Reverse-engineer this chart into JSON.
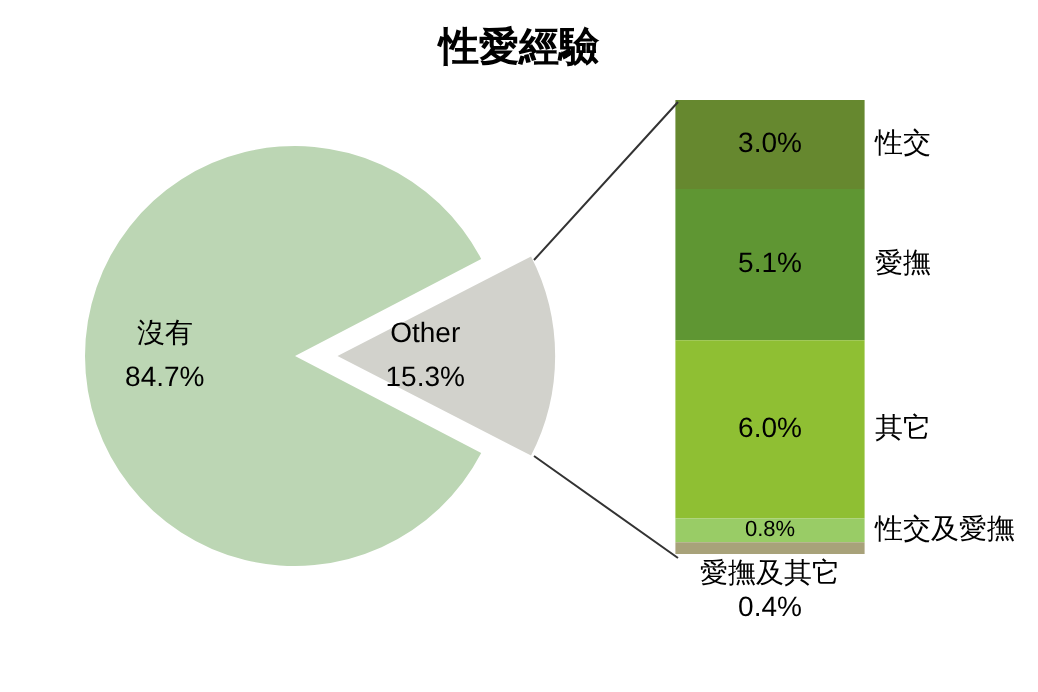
{
  "chart_data": [
    {
      "type": "pie",
      "title": "性愛經驗",
      "categories": [
        "沒有",
        "Other"
      ],
      "values": [
        84.7,
        15.3
      ],
      "colors": [
        "#bcd6b4",
        "#d2d2cc"
      ],
      "value_labels": [
        "84.7%",
        "15.3%"
      ]
    },
    {
      "type": "bar",
      "stacked": true,
      "categories": [
        null
      ],
      "series": [
        {
          "name": "愛撫及其它",
          "color": "#a8a27a",
          "values": [
            0.4
          ],
          "value_labels": [
            "0.4%"
          ]
        },
        {
          "name": "性交及愛撫",
          "color": "#99cc66",
          "values": [
            0.8
          ],
          "value_labels": [
            "0.8%"
          ]
        },
        {
          "name": "其它",
          "color": "#8fbf33",
          "values": [
            6.0
          ],
          "value_labels": [
            "6.0%"
          ]
        },
        {
          "name": "愛撫",
          "color": "#5f9633",
          "values": [
            5.1
          ],
          "value_labels": [
            "5.1%"
          ]
        },
        {
          "name": "性交",
          "color": "#66882f",
          "values": [
            3.0
          ],
          "value_labels": [
            "3.0%"
          ]
        }
      ]
    }
  ]
}
